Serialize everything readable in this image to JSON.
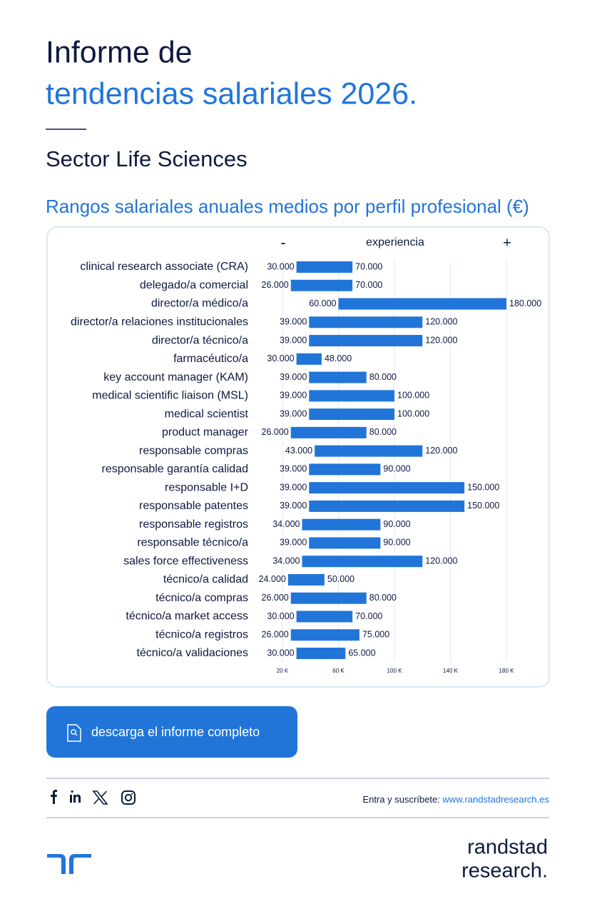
{
  "header": {
    "title": [
      "Informe de",
      "tendencias salariales 2026."
    ],
    "sector": "Sector Life Sciences"
  },
  "chart_data": {
    "type": "range",
    "title": "Rangos salariales anuales medios por perfil profesional (€)",
    "axis_header": {
      "low": "-",
      "label": "experiencia",
      "high": "+"
    },
    "categories": [
      "clinical research associate (CRA)",
      "delegado/a comercial",
      "director/a médico/a",
      "director/a relaciones institucionales",
      "director/a técnico/a",
      "farmacéutico/a",
      "key account manager (KAM)",
      "medical scientific liaison (MSL)",
      "medical scientist",
      "product manager",
      "responsable compras",
      "responsable garantía calidad",
      "responsable I+D",
      "responsable patentes",
      "responsable registros",
      "responsable técnico/a",
      "sales force effectiveness",
      "técnico/a calidad",
      "técnico/a compras",
      "técnico/a market access",
      "técnico/a registros",
      "técnico/a validaciones"
    ],
    "series": [
      {
        "color": "#2175d9",
        "values": [
          30000,
          26000,
          60000,
          39000,
          39000,
          30000,
          39000,
          39000,
          39000,
          26000,
          43000,
          39000,
          39000,
          39000,
          34000,
          39000,
          34000,
          24000,
          26000,
          30000,
          26000,
          30000
        ],
        "value_labels": [
          "30.000",
          "26.000",
          "60.000",
          "39.000",
          "39.000",
          "30.000",
          "39.000",
          "39.000",
          "39.000",
          "26.000",
          "43.000",
          "39.000",
          "39.000",
          "39.000",
          "34.000",
          "39.000",
          "34.000",
          "24.000",
          "26.000",
          "30.000",
          "26.000",
          "30.000"
        ]
      },
      {
        "color": "#2175d9",
        "values": [
          70000,
          70000,
          180000,
          120000,
          120000,
          48000,
          80000,
          100000,
          100000,
          80000,
          120000,
          90000,
          150000,
          150000,
          90000,
          90000,
          120000,
          50000,
          80000,
          70000,
          75000,
          65000
        ],
        "value_labels": [
          "70.000",
          "70.000",
          "180.000",
          "120.000",
          "120.000",
          "48.000",
          "80.000",
          "100.000",
          "100.000",
          "80.000",
          "120.000",
          "90.000",
          "150.000",
          "150.000",
          "90.000",
          "90.000",
          "120.000",
          "50.000",
          "80.000",
          "70.000",
          "75.000",
          "65.000"
        ]
      }
    ],
    "xlim": [
      20000,
      180000
    ],
    "xticks": [
      {
        "value": 20000,
        "label": "20 K"
      },
      {
        "value": 60000,
        "label": "60 K"
      },
      {
        "value": 100000,
        "label": "100 K"
      },
      {
        "value": 140000,
        "label": "140 K"
      },
      {
        "value": 180000,
        "label": "180 K"
      }
    ],
    "grid": true
  },
  "button": {
    "label": "descarga el informe completo"
  },
  "footer": {
    "subscribe": "Entra y suscríbete: ",
    "link": "www.randstadresearch.es",
    "brand": [
      "randstad",
      "research."
    ]
  }
}
